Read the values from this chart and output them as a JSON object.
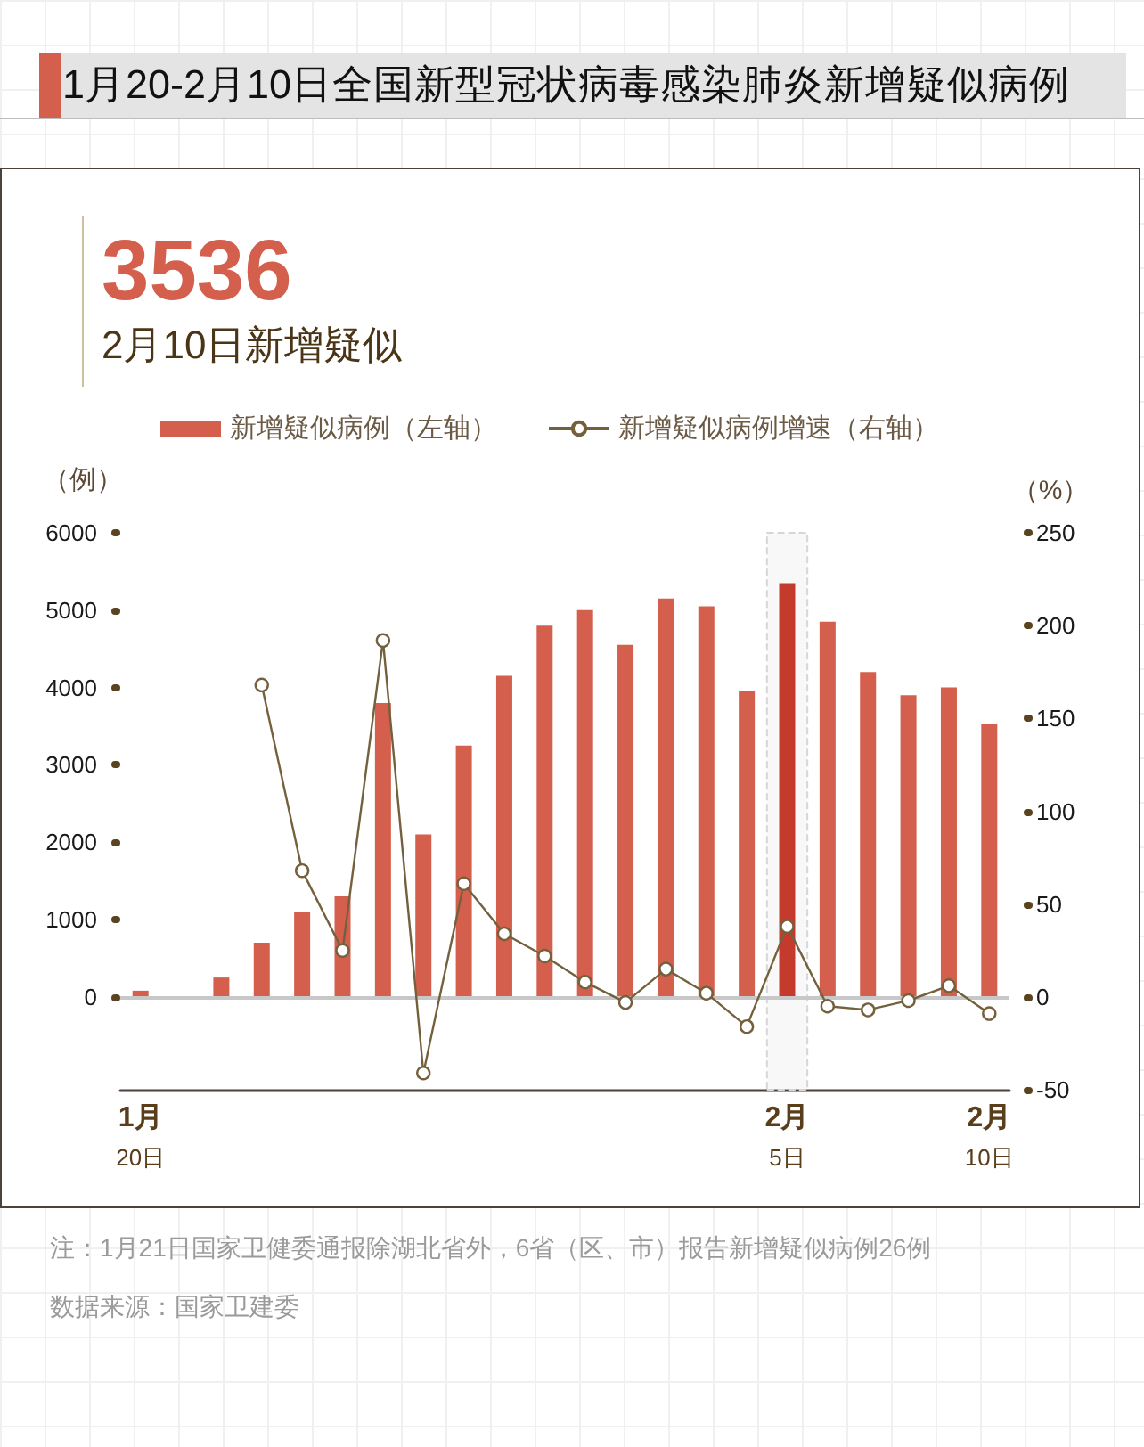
{
  "chart_data": {
    "type": "bar",
    "title": "1月20-2月10日全国新型冠状病毒感染肺炎新增疑似病例",
    "ylabel": "（例）",
    "y2label": "（%）",
    "categories": [
      "1月\n20日",
      null,
      null,
      null,
      null,
      null,
      null,
      null,
      null,
      null,
      null,
      null,
      null,
      null,
      null,
      null,
      "2月\n5日",
      null,
      null,
      null,
      null,
      "2月\n10日"
    ],
    "series": [
      {
        "name": "新增疑似病例（左轴）",
        "color": "#d45f4c",
        "colors": [
          "#d45f4c",
          "#d45f4c",
          "#d45f4c",
          "#d45f4c",
          "#d45f4c",
          "#d45f4c",
          "#d45f4c",
          "#d45f4c",
          "#d45f4c",
          "#d45f4c",
          "#d45f4c",
          "#d45f4c",
          "#d45f4c",
          "#d45f4c",
          "#d45f4c",
          "#d45f4c",
          "#c43b2d",
          "#d45f4c",
          "#d45f4c",
          "#d45f4c",
          "#d45f4c",
          "#d45f4c"
        ],
        "values": [
          80,
          null,
          250,
          700,
          1100,
          1300,
          3800,
          2100,
          3250,
          4150,
          4800,
          5000,
          4550,
          5150,
          5050,
          3950,
          5350,
          4850,
          4200,
          3900,
          4000,
          3536
        ]
      },
      {
        "name": "新增疑似病例增速（右轴）",
        "type": "line",
        "axis": "y2",
        "color": "#75603e",
        "values": [
          null,
          null,
          null,
          168,
          68,
          25,
          192,
          -41,
          61,
          34,
          22,
          8,
          -3,
          15,
          2,
          -16,
          38,
          -5,
          -7,
          -2,
          6,
          -9
        ]
      }
    ],
    "ylim": [
      -1200,
      6000
    ],
    "yticks": [
      0,
      1000,
      2000,
      3000,
      4000,
      5000,
      6000
    ],
    "y2lim": [
      -50,
      250
    ],
    "y2ticks": [
      -50,
      0,
      50,
      100,
      150,
      200,
      250
    ],
    "ref_lines": [
      {
        "axis": "y",
        "value": 0,
        "color": "#c8c8c8"
      }
    ],
    "bands": [
      {
        "axis": "x",
        "from": "2月\n5日",
        "to": "2月\n5日",
        "color": "#d6d6d6"
      }
    ],
    "legend": "top",
    "marker": "circle",
    "line_style": "solid",
    "annotations": [
      "3536",
      "2月10日新增疑似",
      "注：1月21日国家卫健委通报除湖北省外，6省（区、市）报告新增疑似病例26例",
      "数据来源：国家卫建委"
    ]
  }
}
